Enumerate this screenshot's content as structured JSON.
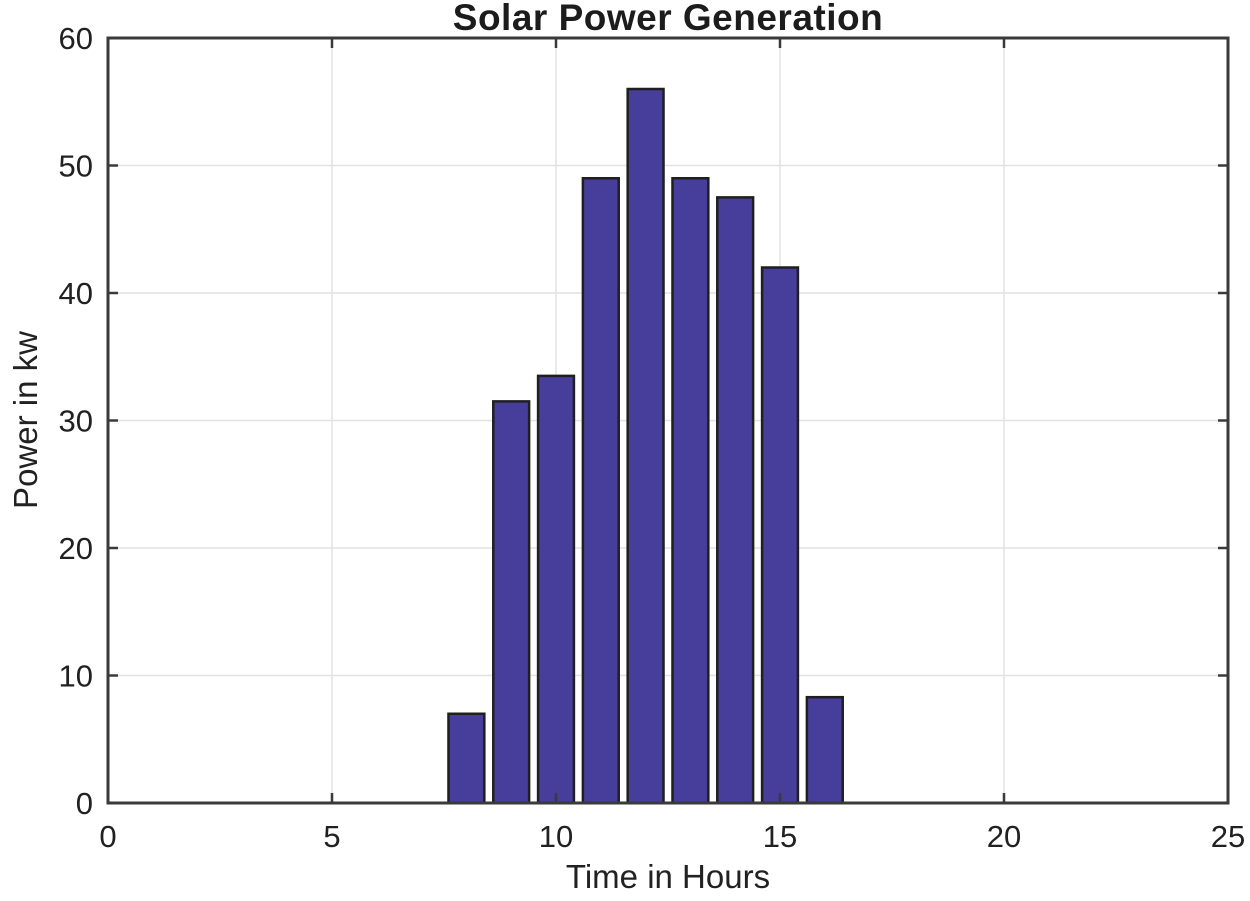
{
  "chart_data": {
    "type": "bar",
    "title": "Solar Power Generation",
    "xlabel": "Time in Hours",
    "ylabel": "Power in kw",
    "x": [
      8,
      9,
      10,
      11,
      12,
      13,
      14,
      15,
      16
    ],
    "values": [
      7,
      31.5,
      33.5,
      49,
      56,
      49,
      47.5,
      42,
      8.3
    ],
    "bar_width": 0.8,
    "xlim": [
      0,
      25
    ],
    "ylim": [
      0,
      60
    ],
    "xticks": [
      0,
      5,
      10,
      15,
      20,
      25
    ],
    "yticks": [
      0,
      10,
      20,
      30,
      40,
      50,
      60
    ],
    "grid": true,
    "legend": "none",
    "colors": {
      "bar_fill": "#473d9b",
      "bar_edge": "#1f1f1f",
      "axis": "#3a3a3a",
      "grid": "#e2e2e2",
      "text": "#212121",
      "background": "#ffffff"
    }
  }
}
